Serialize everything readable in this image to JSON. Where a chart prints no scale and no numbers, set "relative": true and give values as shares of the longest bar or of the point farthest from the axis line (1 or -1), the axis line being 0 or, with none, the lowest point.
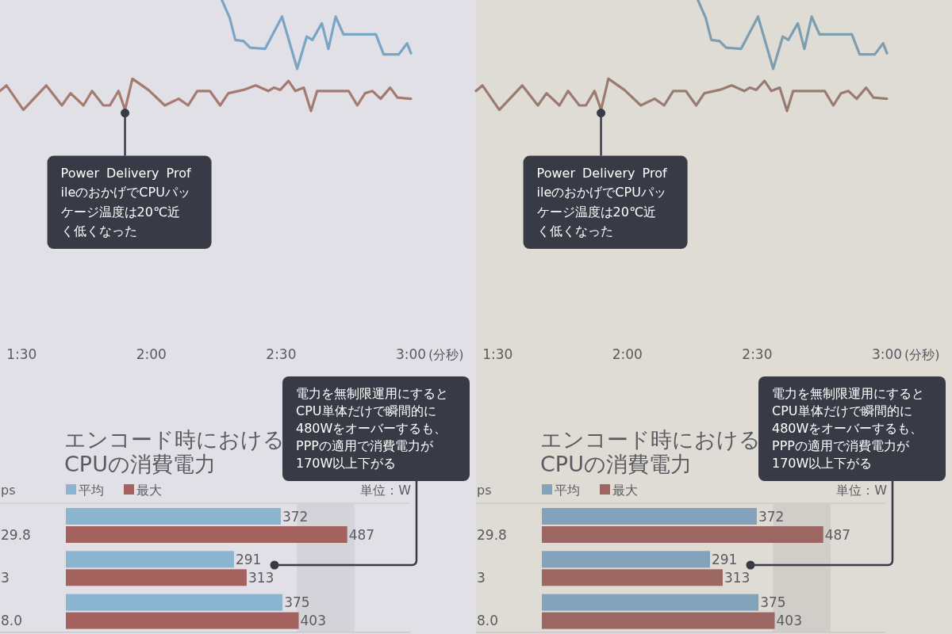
{
  "chart_data": [
    {
      "type": "line",
      "relative": true,
      "xlabel": "(分秒)",
      "xlim": [
        85,
        180
      ],
      "xticks": [
        {
          "value": 90,
          "label": "1:30"
        },
        {
          "value": 120,
          "label": "2:00"
        },
        {
          "value": 150,
          "label": "2:30"
        },
        {
          "value": 180,
          "label": "3:00"
        }
      ],
      "line_style": "solid",
      "series": [
        {
          "color": "#7aa5c4",
          "x": [
            136.3,
            138.1,
            139.4,
            141.3,
            142.8,
            146.3,
            150.2,
            153.7,
            155.9,
            157.2,
            159.4,
            160.9,
            162.6,
            164.4,
            171.9,
            173.7,
            177.2,
            179.1,
            180
          ],
          "values": [
            1,
            0.84,
            0.64,
            0.63,
            0.57,
            0.56,
            0.85,
            0.38,
            0.67,
            0.64,
            0.79,
            0.56,
            0.85,
            0.69,
            0.69,
            0.51,
            0.51,
            0.61,
            0.52
          ]
        },
        {
          "color": "#a57a71",
          "x": [
            85,
            86.5,
            90.4,
            95.7,
            99.3,
            101.3,
            104.3,
            106.3,
            108.9,
            110.4,
            112.4,
            113.9,
            115.6,
            119.3,
            123.1,
            126.3,
            128.5,
            130.6,
            133.5,
            135.9,
            137.8,
            141.3,
            144.1,
            147.0,
            148.3,
            149.8,
            151.7,
            153.3,
            155.2,
            156.9,
            158.3,
            161.9,
            165.6,
            167.6,
            169.4,
            171.1,
            173.0,
            175.2,
            176.9,
            180
          ],
          "values": [
            0.18,
            0.23,
            0.01,
            0.23,
            0.05,
            0.16,
            0.05,
            0.18,
            0.05,
            0.05,
            0.18,
            0.01,
            0.29,
            0.19,
            0.05,
            0.11,
            0.05,
            0.18,
            0.18,
            0.05,
            0.16,
            0.19,
            0.23,
            0.18,
            0.21,
            0.19,
            0.27,
            0.18,
            0.21,
            0,
            0.18,
            0.18,
            0.18,
            0.05,
            0.16,
            0.18,
            0.11,
            0.21,
            0.12,
            0.11
          ]
        }
      ],
      "annotations": [
        {
          "text": "Power Delivery ProfileのおかげでCPUパッケージ温度は20℃近く低くなった",
          "x": 113.9,
          "y": 0.01
        }
      ]
    },
    {
      "type": "bar",
      "orientation": "horizontal",
      "title": "エンコード時における\nCPUの消費電力",
      "ylabel": "ps",
      "categories": [
        "29.8",
        "3",
        "8.0"
      ],
      "tick_labels": "y",
      "series": [
        {
          "name": "平均",
          "color": "#8ab4d0",
          "values": [
            372,
            291,
            375
          ]
        },
        {
          "name": "最大",
          "color": "#a4625f",
          "values": [
            487,
            313,
            403
          ]
        }
      ],
      "xlim": [
        0,
        600
      ],
      "data_labels": true,
      "legend": "top left",
      "bands": [
        {
          "axis": "x",
          "from": 400,
          "to": 500,
          "color": "#d4d3d9"
        }
      ],
      "annotations": [
        "単位：W",
        "電力を無制限運用にするとCPU単体だけで瞬間的に480Wをオーバーするも、PPPの適用で消費電力が170W以上下がる"
      ]
    },
    {
      "type": "line",
      "relative": true,
      "xlabel": "(分秒)",
      "xlim": [
        85,
        180
      ],
      "xticks": [
        {
          "value": 90,
          "label": "1:30"
        },
        {
          "value": 120,
          "label": "2:00"
        },
        {
          "value": 150,
          "label": "2:30"
        },
        {
          "value": 180,
          "label": "3:00"
        }
      ],
      "line_style": "solid",
      "series": [
        {
          "color": "#7d9eaf",
          "x": [
            136.3,
            138.1,
            139.4,
            141.3,
            142.8,
            146.3,
            150.2,
            153.7,
            155.9,
            157.2,
            159.4,
            160.9,
            162.6,
            164.4,
            171.9,
            173.7,
            177.2,
            179.1,
            180
          ],
          "values": [
            1,
            0.84,
            0.64,
            0.63,
            0.57,
            0.56,
            0.85,
            0.38,
            0.67,
            0.64,
            0.79,
            0.56,
            0.85,
            0.69,
            0.69,
            0.51,
            0.51,
            0.61,
            0.52
          ]
        },
        {
          "color": "#9a7b71",
          "x": [
            85,
            86.5,
            90.4,
            95.7,
            99.3,
            101.3,
            104.3,
            106.3,
            108.9,
            110.4,
            112.4,
            113.9,
            115.6,
            119.3,
            123.1,
            126.3,
            128.5,
            130.6,
            133.5,
            135.9,
            137.8,
            141.3,
            144.1,
            147.0,
            148.3,
            149.8,
            151.7,
            153.3,
            155.2,
            156.9,
            158.3,
            161.9,
            165.6,
            167.6,
            169.4,
            171.1,
            173.0,
            175.2,
            176.9,
            180
          ],
          "values": [
            0.18,
            0.23,
            0.01,
            0.23,
            0.05,
            0.16,
            0.05,
            0.18,
            0.05,
            0.05,
            0.18,
            0.01,
            0.29,
            0.19,
            0.05,
            0.11,
            0.05,
            0.18,
            0.18,
            0.05,
            0.16,
            0.19,
            0.23,
            0.18,
            0.21,
            0.19,
            0.27,
            0.18,
            0.21,
            0,
            0.18,
            0.18,
            0.18,
            0.05,
            0.16,
            0.18,
            0.11,
            0.21,
            0.12,
            0.11
          ]
        }
      ],
      "annotations": [
        {
          "text": "Power Delivery ProfileのおかげでCPUパッケージ温度は20℃近く低くなった",
          "x": 113.9,
          "y": 0.01
        }
      ]
    },
    {
      "type": "bar",
      "orientation": "horizontal",
      "title": "エンコード時における\nCPUの消費電力",
      "ylabel": "ps",
      "categories": [
        "29.8",
        "3",
        "8.0"
      ],
      "tick_labels": "y",
      "series": [
        {
          "name": "平均",
          "color": "#82a3bb",
          "values": [
            372,
            291,
            375
          ]
        },
        {
          "name": "最大",
          "color": "#9c6762",
          "values": [
            487,
            313,
            403
          ]
        }
      ],
      "xlim": [
        0,
        600
      ],
      "data_labels": true,
      "legend": "top left",
      "bands": [
        {
          "axis": "x",
          "from": 400,
          "to": 500,
          "color": "#d1cec9"
        }
      ],
      "annotations": [
        "単位：W",
        "電力を無制限運用にするとCPU単体だけで瞬間的に480Wをオーバーするも、PPPの適用で消費電力が170W以上下がる"
      ]
    }
  ]
}
